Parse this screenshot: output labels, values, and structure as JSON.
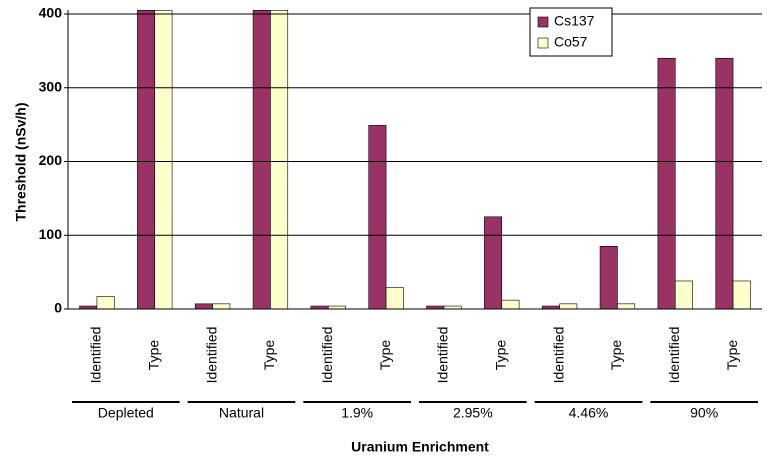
{
  "chart_data": {
    "type": "bar",
    "x_label": "Uranium Enrichment",
    "y_label": "Threshold (nSv/h)",
    "categories": [
      "Identified",
      "Type",
      "Identified",
      "Type",
      "Identified",
      "Type",
      "Identified",
      "Type",
      "Identified",
      "Type",
      "Identified",
      "Type"
    ],
    "groups": [
      "Depleted",
      "Natural",
      "1.9%",
      "2.95%",
      "4.46%",
      "90%"
    ],
    "series": [
      {
        "name": "Cs137",
        "color": "#993366",
        "values": [
          4,
          405,
          7,
          405,
          4,
          249,
          4,
          125,
          4,
          85,
          340,
          340
        ]
      },
      {
        "name": "Co57",
        "color": "#ffffcc",
        "values": [
          17,
          405,
          7,
          405,
          4,
          29,
          4,
          12,
          7,
          7,
          38,
          38
        ]
      }
    ],
    "ylim": [
      0,
      400
    ],
    "yticks": [
      0,
      100,
      200,
      300,
      400
    ],
    "grid": true,
    "legend": "top-right"
  }
}
